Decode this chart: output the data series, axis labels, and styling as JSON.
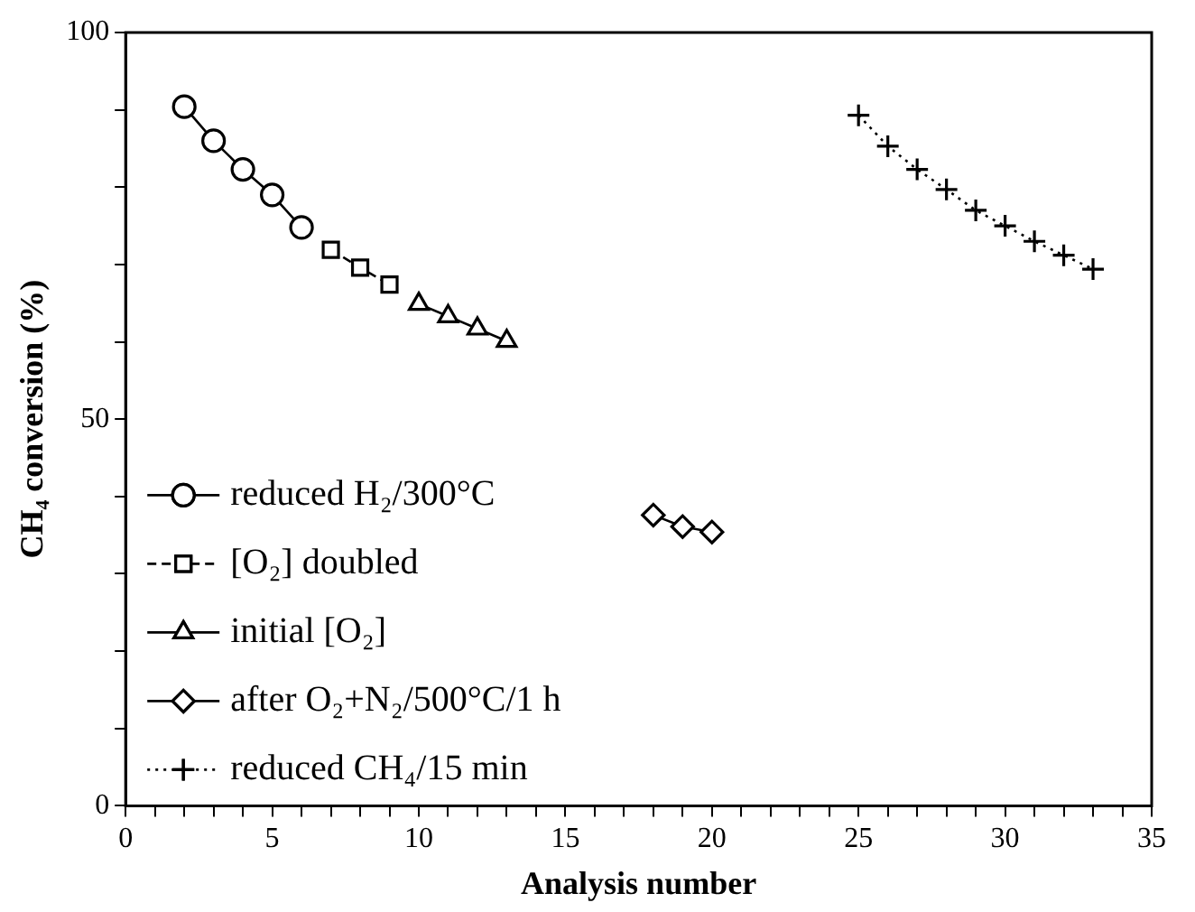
{
  "chart_data": {
    "type": "line",
    "xlabel": "Analysis number",
    "ylabel": "CH₄ conversion (%)",
    "xlim": [
      0,
      35
    ],
    "ylim": [
      0,
      100
    ],
    "xticks": [
      0,
      {
        "value": 1,
        "label": null
      },
      {
        "value": 2,
        "label": null
      },
      {
        "value": 3,
        "label": null
      },
      {
        "value": 4,
        "label": null
      },
      5,
      {
        "value": 6,
        "label": null
      },
      {
        "value": 7,
        "label": null
      },
      {
        "value": 8,
        "label": null
      },
      {
        "value": 9,
        "label": null
      },
      10,
      {
        "value": 11,
        "label": null
      },
      {
        "value": 12,
        "label": null
      },
      {
        "value": 13,
        "label": null
      },
      {
        "value": 14,
        "label": null
      },
      15,
      {
        "value": 16,
        "label": null
      },
      {
        "value": 17,
        "label": null
      },
      {
        "value": 18,
        "label": null
      },
      {
        "value": 19,
        "label": null
      },
      20,
      {
        "value": 21,
        "label": null
      },
      {
        "value": 22,
        "label": null
      },
      {
        "value": 23,
        "label": null
      },
      {
        "value": 24,
        "label": null
      },
      25,
      {
        "value": 26,
        "label": null
      },
      {
        "value": 27,
        "label": null
      },
      {
        "value": 28,
        "label": null
      },
      {
        "value": 29,
        "label": null
      },
      30,
      {
        "value": 31,
        "label": null
      },
      {
        "value": 32,
        "label": null
      },
      {
        "value": 33,
        "label": null
      },
      {
        "value": 34,
        "label": null
      },
      35
    ],
    "yticks": [
      0,
      {
        "value": 10,
        "label": null
      },
      {
        "value": 20,
        "label": null
      },
      {
        "value": 30,
        "label": null
      },
      {
        "value": 40,
        "label": null
      },
      50,
      {
        "value": 60,
        "label": null
      },
      {
        "value": 70,
        "label": null
      },
      {
        "value": 80,
        "label": null
      },
      {
        "value": 90,
        "label": null
      },
      100
    ],
    "grid": false,
    "legend": "bottom left",
    "series": [
      {
        "name": "reduced H₂/300°C",
        "color": "#000000",
        "marker": "circle",
        "line_style": "solid",
        "x": [
          2,
          3,
          4,
          5,
          6
        ],
        "values": [
          90.4,
          86.0,
          82.3,
          79.0,
          74.8
        ]
      },
      {
        "name": "[O₂] doubled",
        "color": "#000000",
        "marker": "square",
        "line_style": "dashed",
        "x": [
          7,
          8,
          9
        ],
        "values": [
          71.9,
          69.6,
          67.4
        ]
      },
      {
        "name": "initial [O₂]",
        "color": "#000000",
        "marker": "triangle",
        "line_style": "solid",
        "x": [
          10,
          11,
          12,
          13
        ],
        "values": [
          64.9,
          63.3,
          61.7,
          60.1
        ]
      },
      {
        "name": "after O₂+N₂/500°C/1 h",
        "color": "#000000",
        "marker": "diamond",
        "line_style": "solid",
        "x": [
          18,
          19,
          20
        ],
        "values": [
          37.6,
          36.1,
          35.4
        ]
      },
      {
        "name": "reduced CH₄/15 min",
        "color": "#000000",
        "marker": "cross",
        "line_style": "dotted",
        "x": [
          25,
          26,
          27,
          28,
          29,
          30,
          31,
          32,
          33
        ],
        "values": [
          89.3,
          85.3,
          82.3,
          79.7,
          77.0,
          75.0,
          73.0,
          71.2,
          69.4
        ]
      }
    ]
  }
}
